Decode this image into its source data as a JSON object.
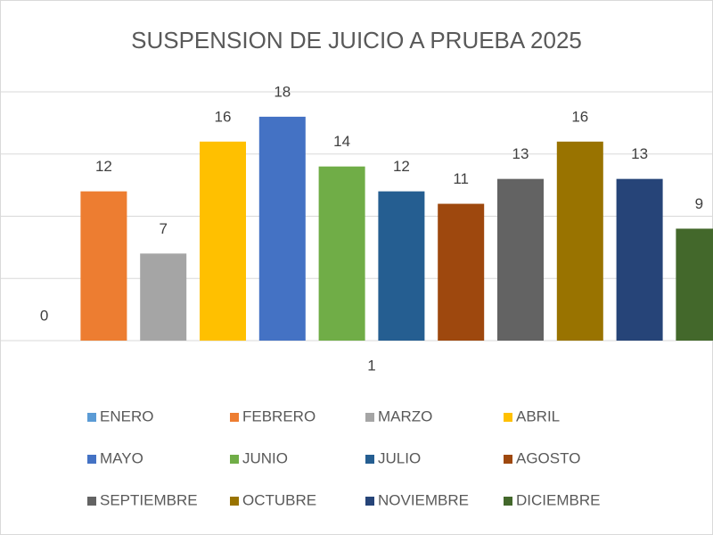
{
  "chart_data": {
    "type": "bar",
    "title": "SUSPENSION DE JUICIO A PRUEBA 2025",
    "categories": [
      "1"
    ],
    "series": [
      {
        "name": "ENERO",
        "color": "#5b9bd5",
        "values": [
          0
        ]
      },
      {
        "name": "FEBRERO",
        "color": "#ed7d31",
        "values": [
          12
        ]
      },
      {
        "name": "MARZO",
        "color": "#a5a5a5",
        "values": [
          7
        ]
      },
      {
        "name": "ABRIL",
        "color": "#ffc000",
        "values": [
          16
        ]
      },
      {
        "name": "MAYO",
        "color": "#4472c4",
        "values": [
          18
        ]
      },
      {
        "name": "JUNIO",
        "color": "#70ad47",
        "values": [
          14
        ]
      },
      {
        "name": "JULIO",
        "color": "#255e91",
        "values": [
          12
        ]
      },
      {
        "name": "AGOSTO",
        "color": "#9e480e",
        "values": [
          11
        ]
      },
      {
        "name": "SEPTIEMBRE",
        "color": "#636363",
        "values": [
          13
        ]
      },
      {
        "name": "OCTUBRE",
        "color": "#997300",
        "values": [
          16
        ]
      },
      {
        "name": "NOVIEMBRE",
        "color": "#264478",
        "values": [
          13
        ]
      },
      {
        "name": "DICIEMBRE",
        "color": "#43682b",
        "values": [
          9
        ]
      }
    ],
    "ylim": [
      0,
      20
    ],
    "yticks": [
      0,
      5,
      10,
      15,
      20
    ],
    "grid": true,
    "legend": "bottom"
  }
}
